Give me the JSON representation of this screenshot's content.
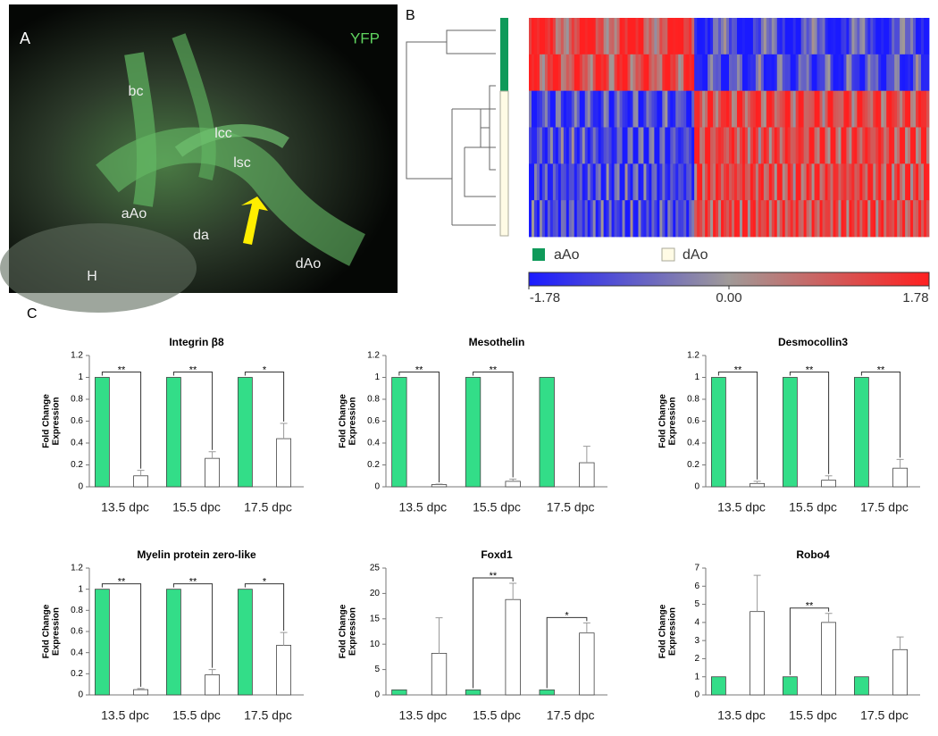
{
  "panel_a": {
    "letter": "A",
    "channel": "YFP",
    "labels": [
      "bc",
      "lcc",
      "lsc",
      "aAo",
      "da",
      "dAo",
      "H"
    ]
  },
  "panel_b": {
    "letter": "B",
    "legend": [
      "aAo",
      "dAo"
    ],
    "colorbar": {
      "lim": [
        -1.78,
        1.78
      ],
      "ticks": [
        -1.78,
        {
          "value": 0,
          "label": "0.00"
        },
        1.78
      ]
    }
  },
  "panel_c": {
    "letter": "C"
  },
  "chart_data": [
    {
      "type": "bar",
      "title": "Integrin β8",
      "ylabel": [
        "Fold Change",
        "Expression"
      ],
      "categories": [
        "13.5 dpc",
        "15.5 dpc",
        "17.5 dpc"
      ],
      "series": [
        {
          "color": "#33dd88",
          "values": [
            1,
            1,
            1
          ]
        },
        {
          "color": "#ffffff",
          "values": [
            0.1,
            0.26,
            0.44
          ],
          "errors": [
            0.05,
            0.06,
            0.14
          ]
        }
      ],
      "significance": [
        "**",
        "**",
        "*"
      ],
      "ylim": [
        0,
        1.2
      ],
      "yticks": [
        0,
        0.2,
        0.4,
        0.6,
        0.8,
        1,
        1.2
      ]
    },
    {
      "type": "bar",
      "title": "Mesothelin",
      "ylabel": [
        "Fold Change",
        "Expression"
      ],
      "categories": [
        "13.5 dpc",
        "15.5 dpc",
        "17.5 dpc"
      ],
      "series": [
        {
          "color": "#33dd88",
          "values": [
            1,
            1,
            1
          ]
        },
        {
          "color": "#ffffff",
          "values": [
            0.02,
            0.05,
            0.22
          ],
          "errors": [
            0.005,
            0.02,
            0.15
          ]
        }
      ],
      "significance": [
        "**",
        "**",
        null
      ],
      "ylim": [
        0,
        1.2
      ],
      "yticks": [
        0,
        0.2,
        0.4,
        0.6,
        0.8,
        1,
        1.2
      ]
    },
    {
      "type": "bar",
      "title": "Desmocollin3",
      "ylabel": [
        "Fold Change",
        "Expression"
      ],
      "categories": [
        "13.5 dpc",
        "15.5 dpc",
        "17.5 dpc"
      ],
      "series": [
        {
          "color": "#33dd88",
          "values": [
            1,
            1,
            1
          ]
        },
        {
          "color": "#ffffff",
          "values": [
            0.03,
            0.06,
            0.17
          ],
          "errors": [
            0.02,
            0.04,
            0.08
          ]
        }
      ],
      "significance": [
        "**",
        "**",
        "**"
      ],
      "ylim": [
        0,
        1.2
      ],
      "yticks": [
        0,
        0.2,
        0.4,
        0.6,
        0.8,
        1,
        1.2
      ]
    },
    {
      "type": "bar",
      "title": "Myelin protein zero-like",
      "ylabel": [
        "Fold Change",
        "Expression"
      ],
      "categories": [
        "13.5 dpc",
        "15.5 dpc",
        "17.5 dpc"
      ],
      "series": [
        {
          "color": "#33dd88",
          "values": [
            1,
            1,
            1
          ]
        },
        {
          "color": "#ffffff",
          "values": [
            0.05,
            0.19,
            0.47
          ],
          "errors": [
            0.01,
            0.05,
            0.12
          ]
        }
      ],
      "significance": [
        "**",
        "**",
        "*"
      ],
      "ylim": [
        0,
        1.2
      ],
      "yticks": [
        0,
        0.2,
        0.4,
        0.6,
        0.8,
        1,
        1.2
      ]
    },
    {
      "type": "bar",
      "title": "Foxd1",
      "ylabel": [
        "Fold Change",
        "Expression"
      ],
      "categories": [
        "13.5 dpc",
        "15.5 dpc",
        "17.5 dpc"
      ],
      "series": [
        {
          "color": "#33dd88",
          "values": [
            1,
            1,
            1
          ]
        },
        {
          "color": "#ffffff",
          "values": [
            8.2,
            18.8,
            12.2
          ],
          "errors": [
            7,
            3.2,
            2
          ]
        }
      ],
      "significance": [
        null,
        "**",
        "*"
      ],
      "ylim": [
        0,
        25
      ],
      "yticks": [
        0,
        5,
        10,
        15,
        20,
        25
      ]
    },
    {
      "type": "bar",
      "title": "Robo4",
      "ylabel": [
        "Fold Change",
        "Expression"
      ],
      "categories": [
        "13.5 dpc",
        "15.5 dpc",
        "17.5 dpc"
      ],
      "series": [
        {
          "color": "#33dd88",
          "values": [
            1,
            1,
            1
          ]
        },
        {
          "color": "#ffffff",
          "values": [
            4.6,
            4,
            2.5
          ],
          "errors": [
            2,
            0.5,
            0.7
          ]
        }
      ],
      "significance": [
        null,
        "**",
        null
      ],
      "ylim": [
        0,
        7
      ],
      "yticks": [
        0,
        1,
        2,
        3,
        4,
        5,
        6,
        7
      ]
    }
  ]
}
